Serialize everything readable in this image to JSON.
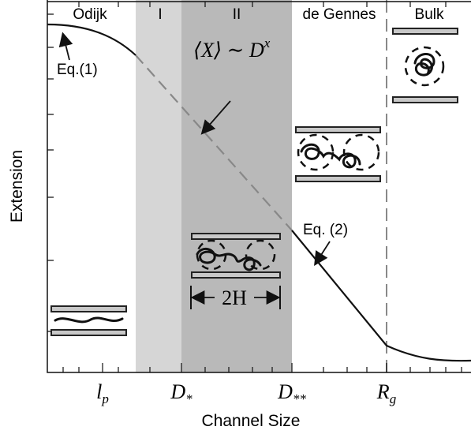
{
  "regions": [
    "Odijk",
    "I",
    "II",
    "de Gennes",
    "Bulk"
  ],
  "axes": {
    "x_label": "Channel Size",
    "y_label": "Extension"
  },
  "x_ticks": [
    {
      "symbol": "l",
      "subscript": "p"
    },
    {
      "symbol": "D",
      "subscript": "*"
    },
    {
      "symbol": "D",
      "subscript": "**"
    },
    {
      "symbol": "R",
      "subscript": "g"
    }
  ],
  "annotations": {
    "eq1": "Eq.(1)",
    "eq2": "Eq. (2)",
    "scaling": "⟨X⟩ ∼ D",
    "scaling_exponent": "x",
    "width": "2H"
  }
}
